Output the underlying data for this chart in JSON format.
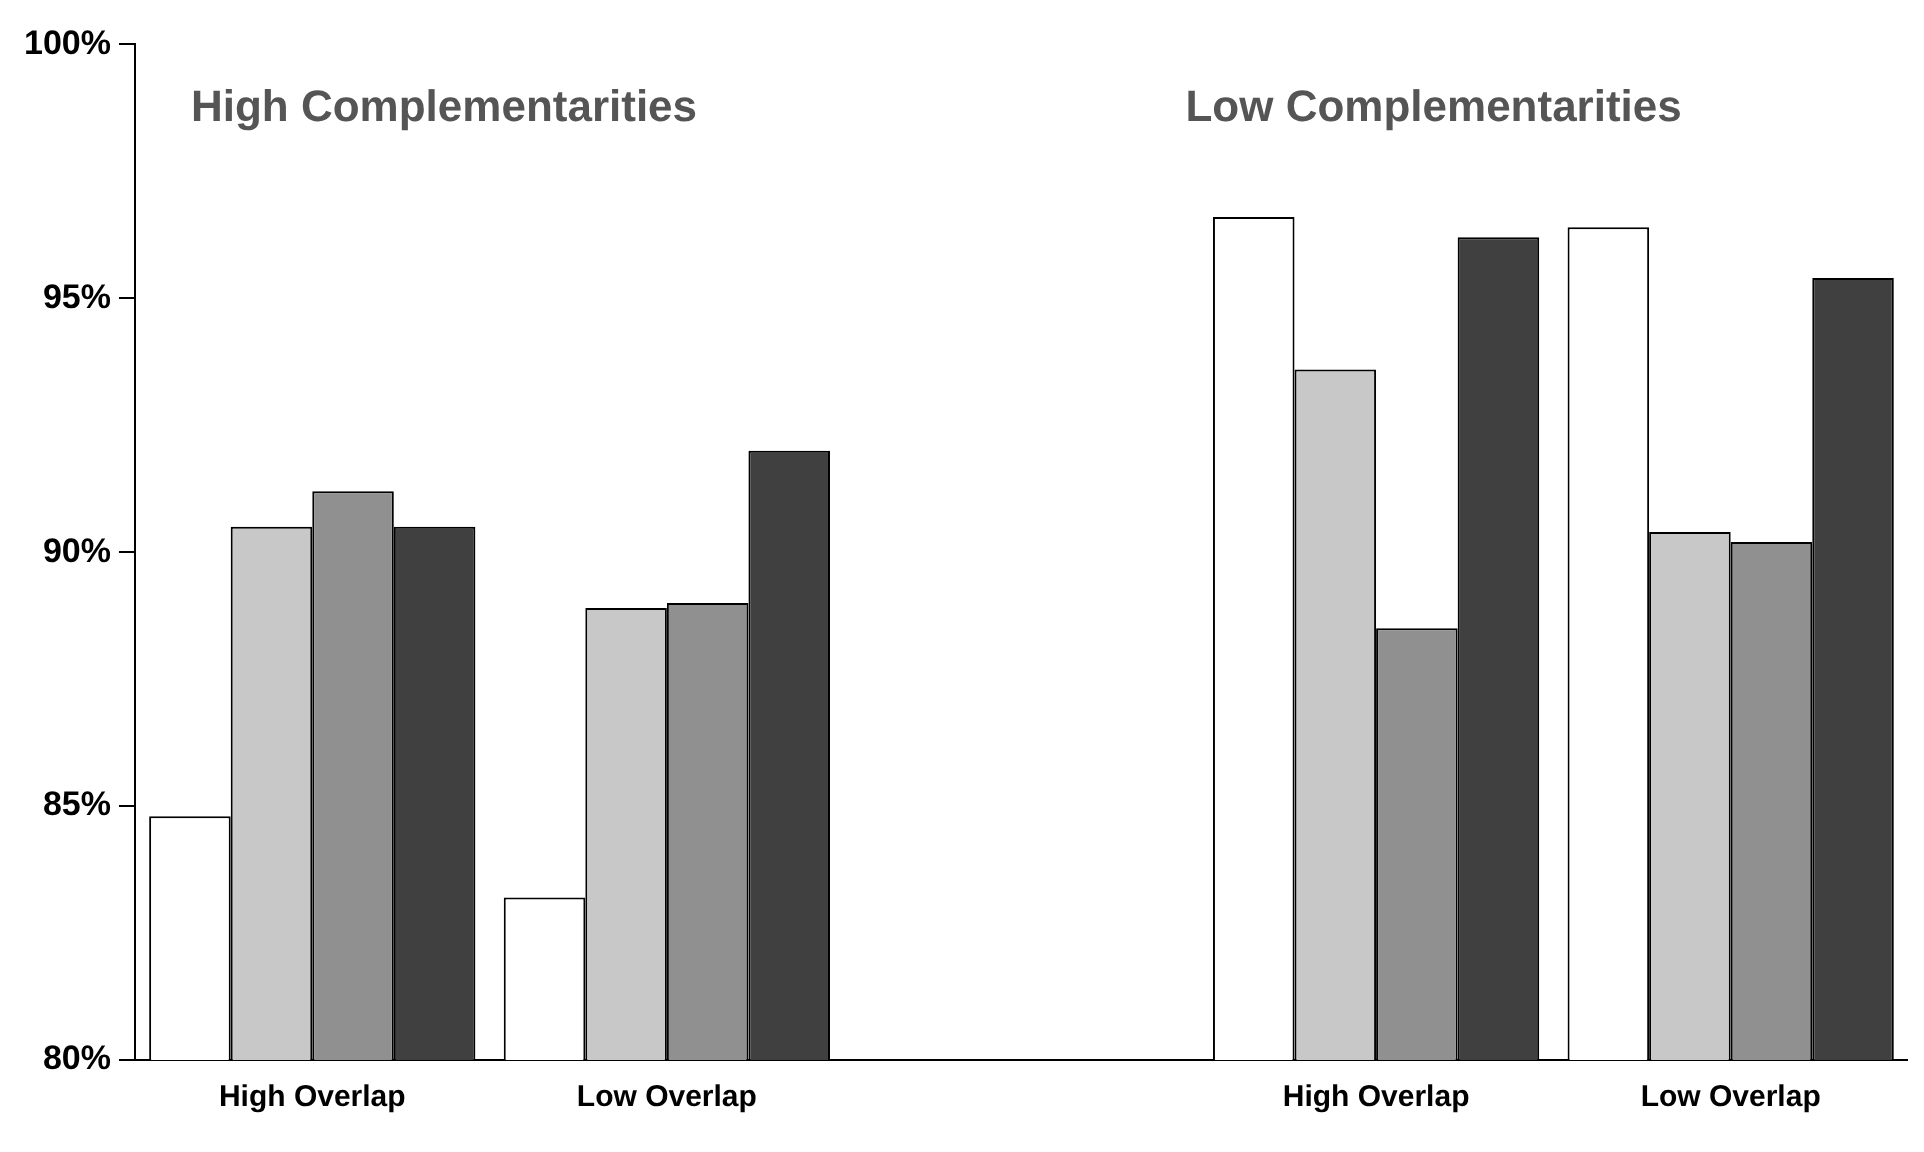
{
  "chart_data": {
    "type": "bar",
    "categories": [
      "High Overlap",
      "Low Overlap",
      null,
      "High Overlap",
      "Low Overlap"
    ],
    "series": [
      {
        "color": "#ffffff",
        "values": [
          84.8,
          83.2,
          null,
          96.6,
          96.4
        ]
      },
      {
        "color": "#c8c8c8",
        "values": [
          90.5,
          88.9,
          null,
          93.6,
          90.4
        ]
      },
      {
        "color": "#909090",
        "values": [
          91.2,
          89.0,
          null,
          88.5,
          90.2
        ]
      },
      {
        "color": "#404040",
        "values": [
          90.5,
          92.0,
          null,
          96.2,
          95.4
        ]
      }
    ],
    "ylim": [
      80,
      100
    ],
    "yticks": [
      {
        "value": 80,
        "label": "80%"
      },
      {
        "value": 85,
        "label": "85%"
      },
      {
        "value": 90,
        "label": "90%"
      },
      {
        "value": 95,
        "label": "95%"
      },
      {
        "value": 100,
        "label": "100%"
      }
    ],
    "annotations": [
      "High Complementarities",
      "Low Complementarities"
    ],
    "grid": false,
    "legend": false
  }
}
